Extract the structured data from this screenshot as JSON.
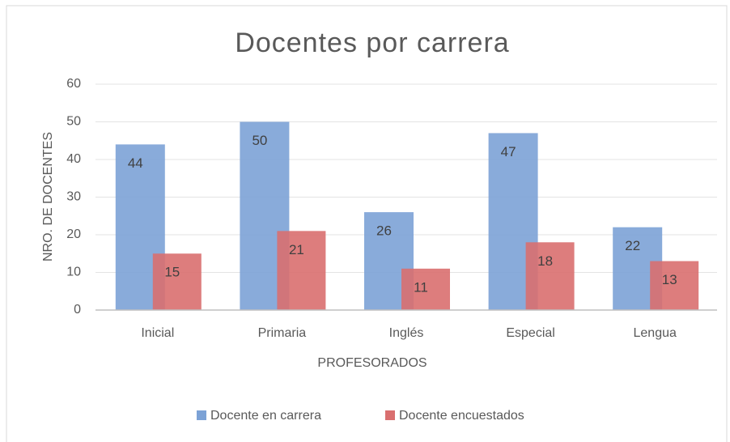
{
  "chart_data": {
    "type": "bar",
    "title": "Docentes por carrera",
    "x_label": "PROFESORADOS",
    "y_label": "NRO. DE DOCENTES",
    "categories": [
      "Inicial",
      "Primaria",
      "Inglés",
      "Especial",
      "Lengua"
    ],
    "series": [
      {
        "name": "Docente en carrera",
        "color": "#7ca2d6",
        "values": [
          44,
          50,
          26,
          47,
          22
        ]
      },
      {
        "name": "Docente encuestados",
        "color": "#d96f6f",
        "values": [
          15,
          21,
          11,
          18,
          13
        ]
      }
    ],
    "ylim": [
      0,
      60
    ],
    "yticks": [
      0,
      10,
      20,
      30,
      40,
      50,
      60
    ],
    "grid": true,
    "legend": "bottom"
  }
}
